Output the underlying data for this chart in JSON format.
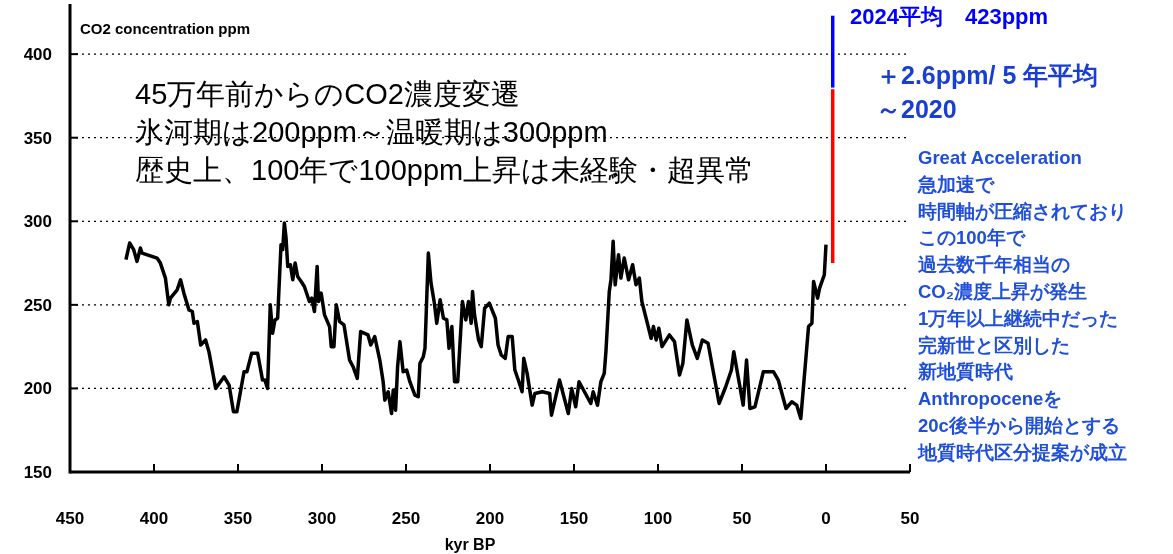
{
  "chart_data": {
    "type": "line",
    "xlabel": "kyr BP",
    "ylabel": "CO2 concentration ppm",
    "xlim": [
      450,
      -50
    ],
    "xticks": [
      450,
      400,
      350,
      300,
      250,
      200,
      150,
      100,
      50,
      0,
      {
        "value": -50,
        "label": "50"
      }
    ],
    "ylim": [
      150,
      430
    ],
    "yticks": [
      150,
      200,
      250,
      300,
      350,
      400
    ],
    "grid": "y",
    "marker": "none",
    "line_style": "solid",
    "series": [
      {
        "color": "#000000",
        "x": [
          416.7,
          414.5,
          412.1,
          410.1,
          408.1,
          407.1,
          398.2,
          396.2,
          393.2,
          391.2,
          390.2,
          386.2,
          384.2,
          382.2,
          379.2,
          377.2,
          376.2,
          374.2,
          372.2,
          369.3,
          367.3,
          363.3,
          358.3,
          355.3,
          352.7,
          350.7,
          346.4,
          344.7,
          341.9,
          338.3,
          335.4,
          334,
          332.4,
          330.8,
          329.4,
          328,
          326.4,
          324.4,
          323.4,
          322.4,
          321.4,
          320.4,
          318.8,
          317.4,
          316,
          314.5,
          312.4,
          310.5,
          307.5,
          306.1,
          304.5,
          302.9,
          302.1,
          300.5,
          298.5,
          295.5,
          294.5,
          292.9,
          291.5,
          289.5,
          286.9,
          283.6,
          281.5,
          279,
          277,
          272.6,
          271,
          268.6,
          265.6,
          263.6,
          262.6,
          260.6,
          258.6,
          257.6,
          256.2,
          255,
          253.6,
          251.7,
          249.6,
          247.7,
          244.7,
          242.7,
          241.7,
          239.7,
          238.7,
          236.7,
          235.1,
          233.1,
          231.7,
          229.7,
          227.7,
          225.7,
          224.4,
          222.7,
          221.1,
          219.2,
          216.4,
          214.4,
          212.8,
          211.2,
          210.4,
          209.2,
          206.8,
          205.2,
          203.2,
          200.4,
          196.8,
          195.2,
          193.3,
          190.9,
          189.2,
          186.8,
          185.2,
          182.8,
          180.9,
          179.9,
          177.9,
          174.9,
          173.3,
          168.9,
          164.5,
          163.4,
          158.6,
          153.4,
          151.4,
          149,
          147,
          140,
          138.6,
          136,
          134,
          132,
          131,
          129,
          128,
          126.7,
          125.5,
          123.5,
          122.1,
          120.1,
          117.5,
          115.1,
          113.1,
          111.1,
          109.6,
          106.1,
          104.1,
          102.7,
          101.1,
          99.5,
          97.6,
          93.2,
          90.2,
          87.2,
          85.2,
          82.8,
          79.6,
          76.6,
          73.6,
          70.2,
          63.6,
          59.7,
          56.3,
          54.9,
          52.3,
          49.3,
          47.3,
          45.3,
          42.3,
          37.3,
          31.3,
          28.4,
          23.8,
          20.4,
          17.4,
          15,
          12.4,
          10.4,
          8.4,
          7.4,
          5,
          3.8,
          1,
          0
        ],
        "values": [
          277,
          287,
          283,
          276,
          284,
          281,
          278,
          275,
          266,
          250,
          254,
          259,
          265,
          257,
          247,
          246,
          239,
          240,
          226,
          229,
          222,
          200,
          207,
          202,
          186,
          186,
          210,
          210,
          221,
          221,
          205,
          205,
          200,
          250,
          233,
          241,
          242,
          286,
          283,
          299,
          290,
          273,
          274,
          265,
          275,
          267,
          264,
          261,
          252,
          254,
          246,
          273,
          252,
          257,
          244,
          237,
          225,
          225,
          250,
          240,
          238,
          217,
          213,
          206,
          234,
          232,
          226,
          231,
          217,
          204,
          193,
          198,
          185,
          199,
          187,
          213,
          228,
          210,
          211,
          204,
          196,
          195,
          215,
          219,
          224,
          281,
          263,
          251,
          239,
          253,
          242,
          241,
          224,
          237,
          204,
          204,
          252,
          241,
          252,
          239,
          258,
          244,
          229,
          225,
          248,
          251,
          242,
          226,
          220,
          218,
          231,
          231,
          211,
          204,
          198,
          218,
          209,
          190,
          197,
          198,
          197,
          184,
          205,
          185,
          200,
          189,
          204,
          191,
          198,
          190,
          204,
          209,
          222,
          258,
          265,
          288,
          262,
          280,
          266,
          278,
          265,
          274,
          262,
          266,
          252,
          238,
          230,
          237,
          229,
          236,
          225,
          232,
          228,
          208,
          215,
          241,
          226,
          218,
          229,
          227,
          191,
          201,
          211,
          222,
          207,
          190,
          217,
          188,
          189,
          210,
          210,
          205,
          188,
          192,
          190,
          182,
          213,
          237,
          239,
          264,
          254,
          260,
          268,
          286
        ]
      },
      {
        "color": "#ff0000",
        "x": [
          -4,
          -4
        ],
        "values": [
          275,
          379
        ]
      },
      {
        "color": "#0000ff",
        "x": [
          -4,
          -4
        ],
        "values": [
          380,
          423
        ]
      }
    ],
    "annotations": [
      "45万年前からのCO2濃度変遷",
      "氷河期は200ppm～温暖期は300ppm",
      "歴史上、100年で100ppm上昇は未経験・超異常",
      "2024平均　423ppm",
      "＋2.6ppm/ 5 年平均",
      "～2020",
      "Great Acceleration",
      "急加速で",
      "時間軸が圧縮されており",
      "この100年で",
      "過去数千年相当の",
      "CO₂濃度上昇が発生",
      "1万年以上継続中だった",
      "完新世と区別した",
      "新地質時代",
      "Anthropoceneを",
      "20c後半から開始とする",
      "地質時代区分提案が成立"
    ]
  }
}
